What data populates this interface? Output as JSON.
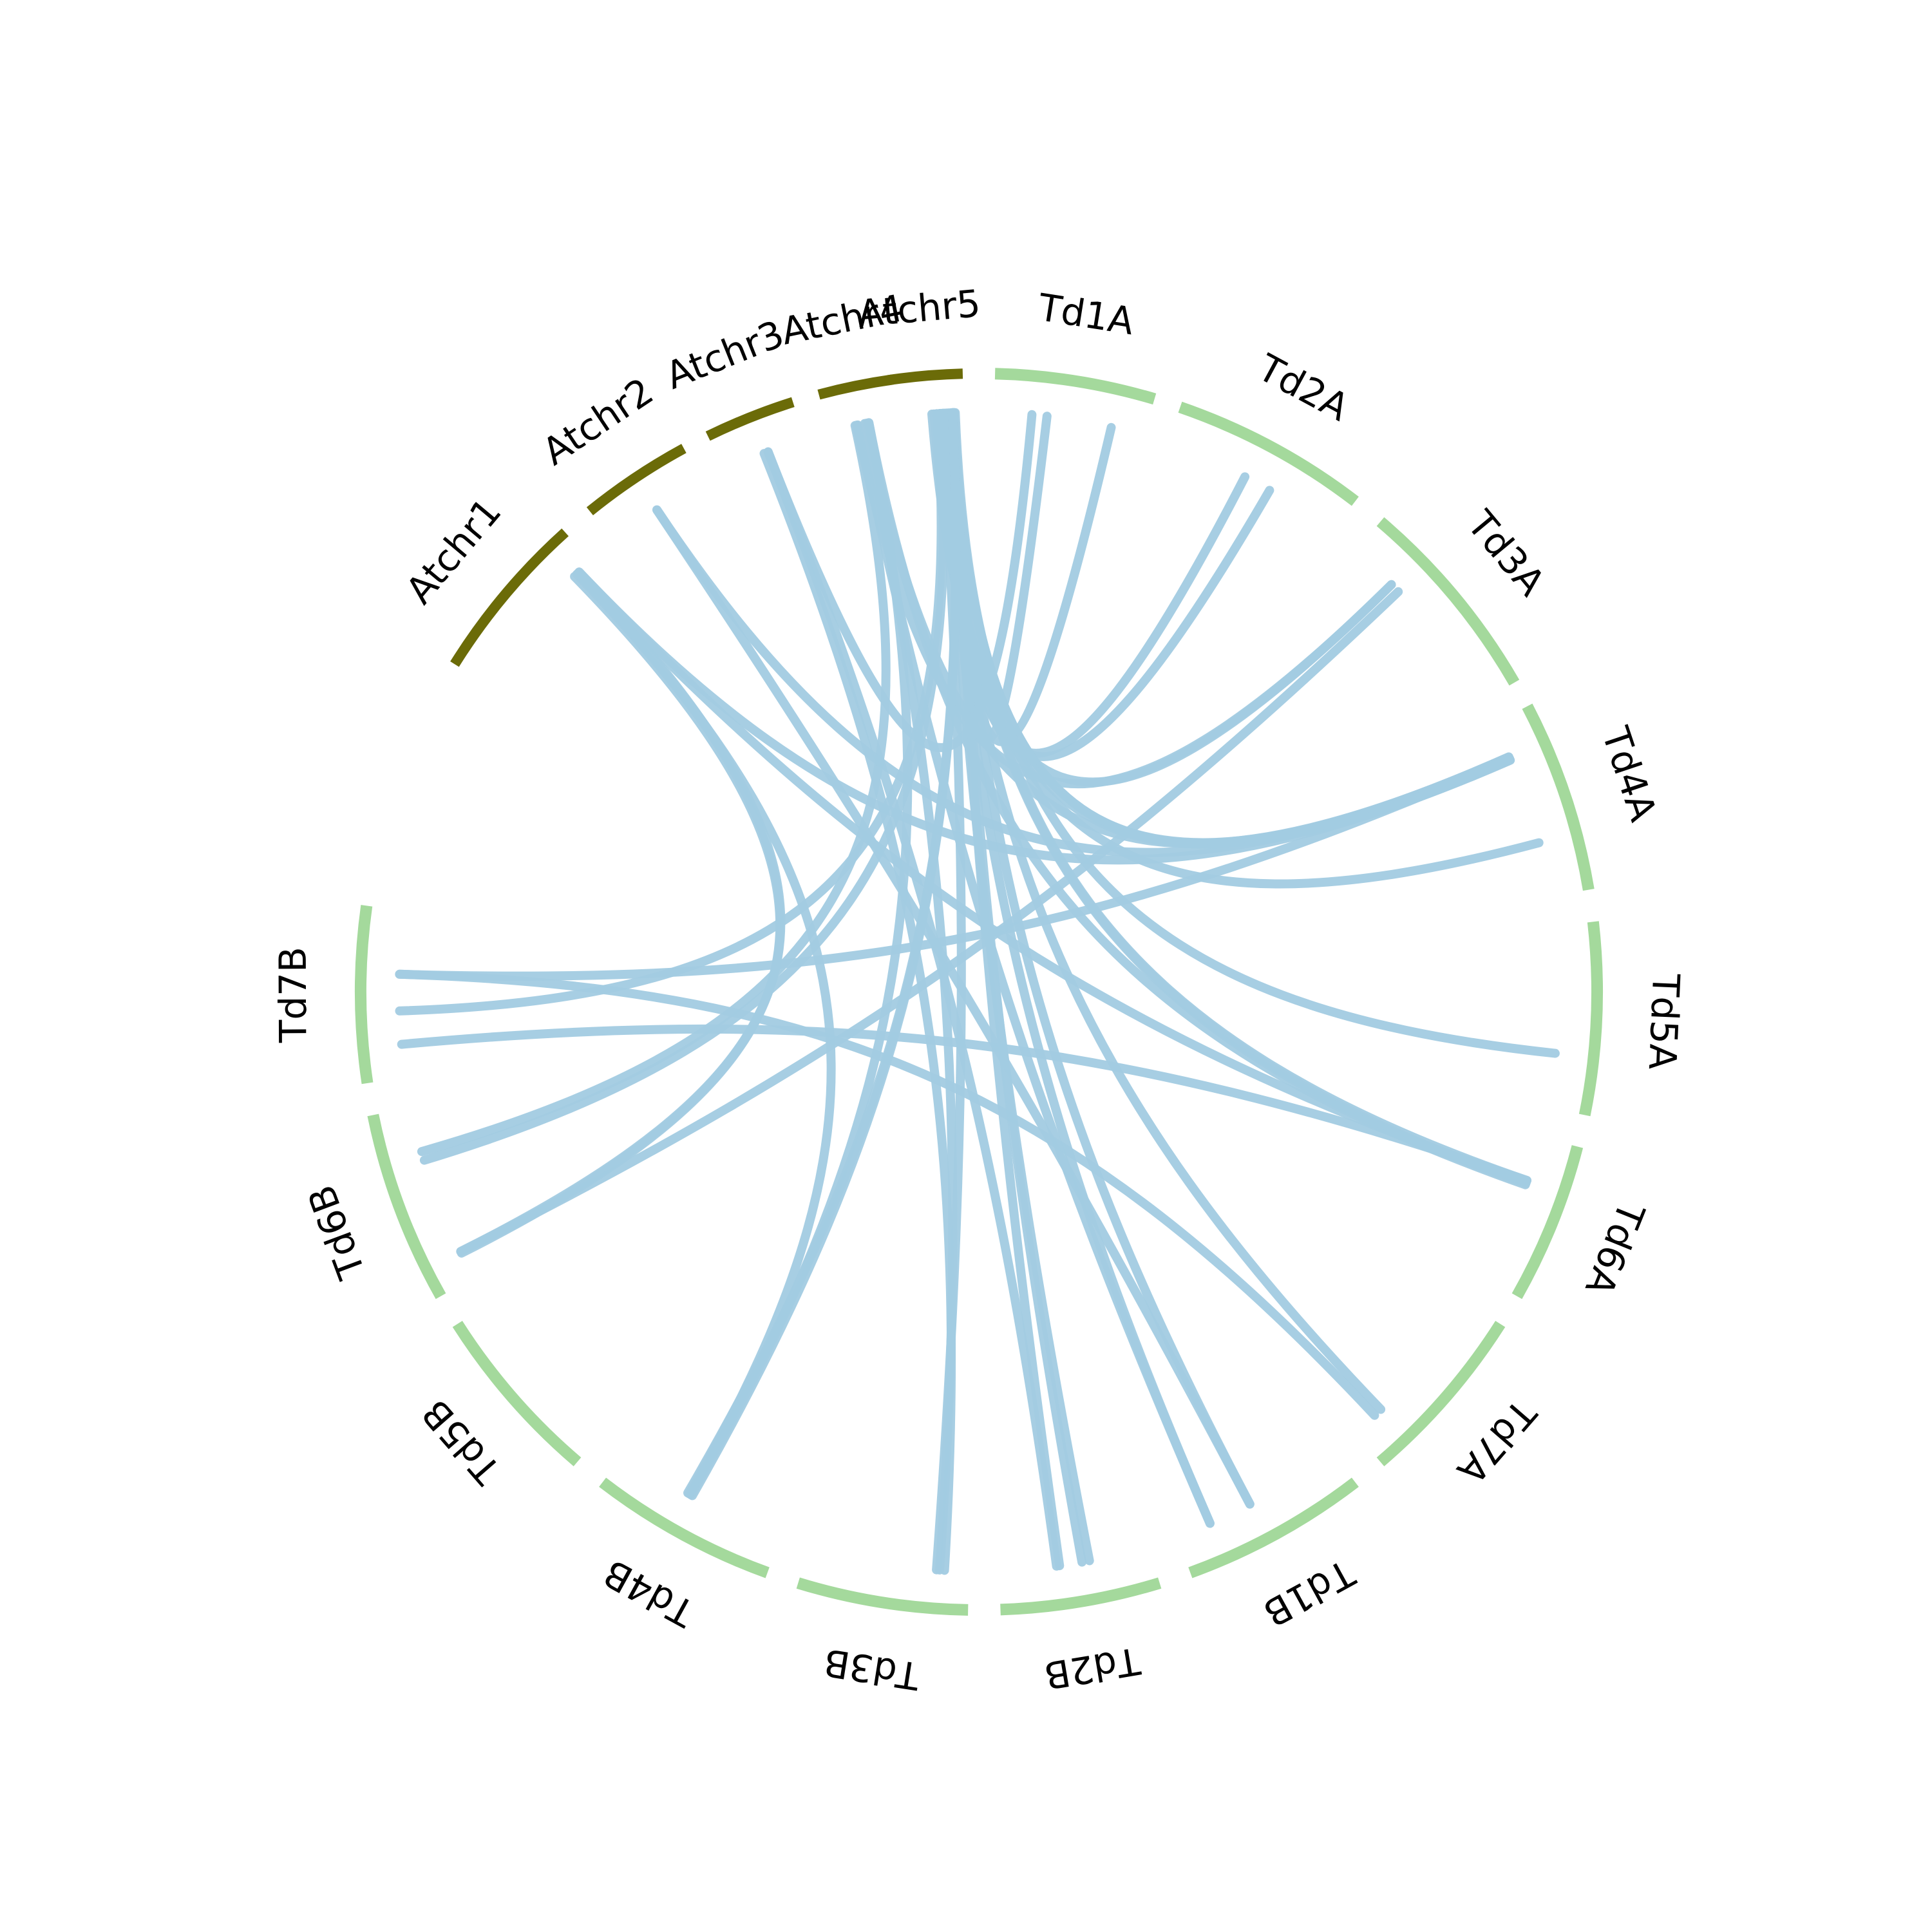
{
  "colors": {
    "arabidopsis": "#6b6b08",
    "durum": "#a4d99c",
    "link": "#a2cbe2",
    "label": "#000000"
  },
  "chart_data": {
    "type": "circos",
    "chromosomes": [
      {
        "id": "Atchr5",
        "label": "Atchr5",
        "group": "arabidopsis"
      },
      {
        "id": "Td1A",
        "label": "Td1A",
        "group": "durum"
      },
      {
        "id": "Td2A",
        "label": "Td2A",
        "group": "durum"
      },
      {
        "id": "Td3A",
        "label": "Td3A",
        "group": "durum"
      },
      {
        "id": "Td4A",
        "label": "Td4A",
        "group": "durum"
      },
      {
        "id": "Td5A",
        "label": "Td5A",
        "group": "durum"
      },
      {
        "id": "Td6A",
        "label": "Td6A",
        "group": "durum"
      },
      {
        "id": "Td7A",
        "label": "Td7A",
        "group": "durum"
      },
      {
        "id": "Td1B",
        "label": "Td1B",
        "group": "durum"
      },
      {
        "id": "Td2B",
        "label": "Td2B",
        "group": "durum"
      },
      {
        "id": "Td3B",
        "label": "Td3B",
        "group": "durum"
      },
      {
        "id": "Td4B",
        "label": "Td4B",
        "group": "durum"
      },
      {
        "id": "Td5B",
        "label": "Td5B",
        "group": "durum"
      },
      {
        "id": "Td6B",
        "label": "Td6B",
        "group": "durum"
      },
      {
        "id": "Td7B",
        "label": "Td7B",
        "group": "durum"
      },
      {
        "id": "Atchr1",
        "label": "Atchr1",
        "group": "arabidopsis"
      },
      {
        "id": "Atchr2",
        "label": "Atchr2",
        "group": "arabidopsis"
      },
      {
        "id": "Atchr3",
        "label": "Atchr3",
        "group": "arabidopsis"
      },
      {
        "id": "Atchr4",
        "label": "Atchr4",
        "group": "arabidopsis"
      }
    ],
    "links": [
      {
        "from": [
          "Atchr5",
          0.82
        ],
        "to": [
          "Td1A",
          0.35
        ]
      },
      {
        "from": [
          "Atchr5",
          0.78
        ],
        "to": [
          "Td1A",
          0.78
        ]
      },
      {
        "from": [
          "Atchr5",
          0.7
        ],
        "to": [
          "Td2A",
          0.45
        ]
      },
      {
        "from": [
          "Atchr5",
          0.66
        ],
        "to": [
          "Td2A",
          0.6
        ]
      },
      {
        "from": [
          "Atchr5",
          0.58
        ],
        "to": [
          "Td3A",
          0.25
        ]
      },
      {
        "from": [
          "Atchr5",
          0.86
        ],
        "to": [
          "Td4A",
          0.2
        ]
      },
      {
        "from": [
          "Atchr5",
          0.86
        ],
        "to": [
          "Td4A",
          0.21
        ]
      },
      {
        "from": [
          "Atchr5",
          0.62
        ],
        "to": [
          "Td4A",
          0.22
        ]
      },
      {
        "from": [
          "Atchr5",
          0.55
        ],
        "to": [
          "Td4A",
          0.7
        ]
      },
      {
        "from": [
          "Atchr5",
          0.88
        ],
        "to": [
          "Td5A",
          0.7
        ]
      },
      {
        "from": [
          "Atchr5",
          0.8
        ],
        "to": [
          "Td6A",
          0.3
        ]
      },
      {
        "from": [
          "Atchr5",
          0.76
        ],
        "to": [
          "Td6A",
          0.32
        ]
      },
      {
        "from": [
          "Atchr5",
          0.74
        ],
        "to": [
          "Td7A",
          0.8
        ]
      },
      {
        "from": [
          "Atchr5",
          0.84
        ],
        "to": [
          "Td1B",
          0.55
        ]
      },
      {
        "from": [
          "Atchr5",
          0.7
        ],
        "to": [
          "Td1B",
          0.8
        ]
      },
      {
        "from": [
          "Atchr5",
          0.86
        ],
        "to": [
          "Td2B",
          0.45
        ]
      },
      {
        "from": [
          "Atchr5",
          0.72
        ],
        "to": [
          "Td2B",
          0.4
        ]
      },
      {
        "from": [
          "Atchr5",
          0.84
        ],
        "to": [
          "Td2B",
          0.6
        ]
      },
      {
        "from": [
          "Atchr5",
          0.68
        ],
        "to": [
          "Td3B",
          0.2
        ]
      },
      {
        "from": [
          "Atchr5",
          0.84
        ],
        "to": [
          "Td4B",
          0.55
        ]
      },
      {
        "from": [
          "Atchr5",
          0.84
        ],
        "to": [
          "Td4B",
          0.58
        ]
      },
      {
        "from": [
          "Atchr5",
          0.66
        ],
        "to": [
          "Td6B",
          0.7
        ]
      },
      {
        "from": [
          "Atchr5",
          0.62
        ],
        "to": [
          "Td7B",
          0.4
        ]
      },
      {
        "from": [
          "Atchr4",
          0.4
        ],
        "to": [
          "Td3A",
          0.25
        ]
      },
      {
        "from": [
          "Atchr4",
          0.55
        ],
        "to": [
          "Td4A",
          0.2
        ]
      },
      {
        "from": [
          "Atchr4",
          0.58
        ],
        "to": [
          "Td6A",
          0.33
        ]
      },
      {
        "from": [
          "Atchr4",
          0.42
        ],
        "to": [
          "Td1B",
          0.8
        ]
      },
      {
        "from": [
          "Atchr4",
          0.52
        ],
        "to": [
          "Td3B",
          0.18
        ]
      },
      {
        "from": [
          "Atchr4",
          0.58
        ],
        "to": [
          "Td4B",
          0.56
        ]
      },
      {
        "from": [
          "Atchr4",
          0.38
        ],
        "to": [
          "Td6B",
          0.75
        ]
      },
      {
        "from": [
          "Atchr3",
          0.55
        ],
        "to": [
          "Td1A",
          0.25
        ]
      },
      {
        "from": [
          "Atchr3",
          0.55
        ],
        "to": [
          "Td2B",
          0.62
        ]
      },
      {
        "from": [
          "Atchr3",
          0.5
        ],
        "to": [
          "Td3B",
          0.15
        ]
      },
      {
        "from": [
          "Atchr2",
          0.5
        ],
        "to": [
          "Td4A",
          0.21
        ]
      },
      {
        "from": [
          "Atchr2",
          0.5
        ],
        "to": [
          "Td1B",
          0.55
        ]
      },
      {
        "from": [
          "Atchr1",
          0.9
        ],
        "to": [
          "Td4A",
          0.22
        ]
      },
      {
        "from": [
          "Atchr1",
          0.9
        ],
        "to": [
          "Td6A",
          0.31
        ]
      },
      {
        "from": [
          "Atchr1",
          0.88
        ],
        "to": [
          "Td4B",
          0.57
        ]
      },
      {
        "from": [
          "Atchr1",
          0.86
        ],
        "to": [
          "Td6B",
          0.15
        ]
      },
      {
        "from": [
          "Atchr1",
          0.89
        ],
        "to": [
          "Td6B",
          0.16
        ]
      },
      {
        "from": [
          "Td7B",
          0.62
        ],
        "to": [
          "Td7A",
          0.85
        ]
      },
      {
        "from": [
          "Td7B",
          0.62
        ],
        "to": [
          "Td4A",
          0.21
        ]
      },
      {
        "from": [
          "Td7B",
          0.2
        ],
        "to": [
          "Td6A",
          0.3
        ]
      },
      {
        "from": [
          "Td6B",
          0.16
        ],
        "to": [
          "Td3A",
          0.3
        ]
      }
    ]
  }
}
